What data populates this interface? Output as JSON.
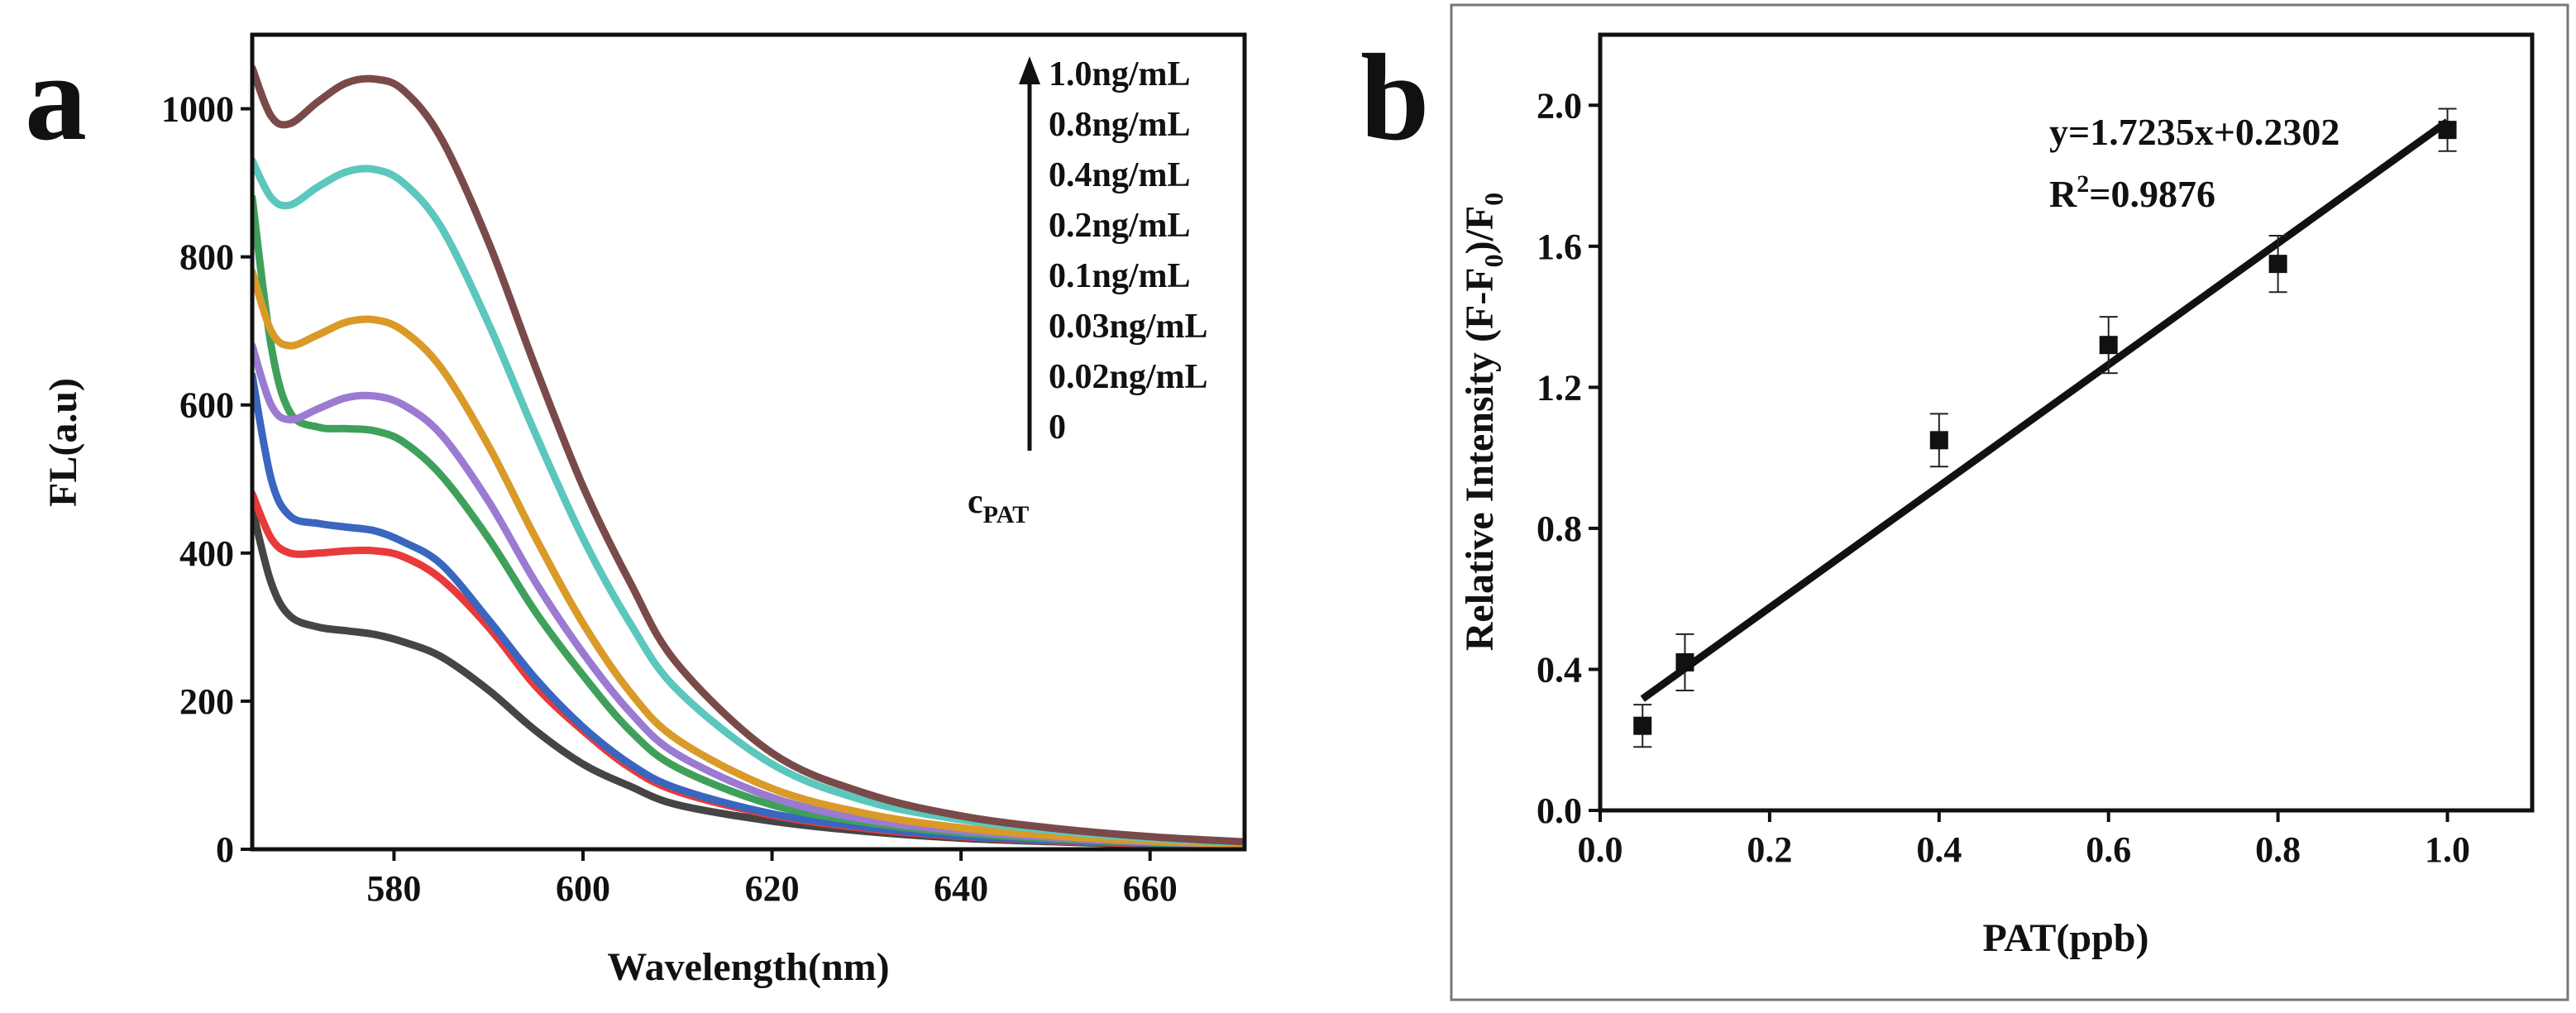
{
  "panel_a": {
    "letter": "a",
    "legend": {
      "items": [
        "1.0ng/mL",
        "0.8ng/mL",
        "0.4ng/mL",
        "0.2ng/mL",
        "0.1ng/mL",
        "0.03ng/mL",
        "0.02ng/mL",
        "0"
      ],
      "arrow_label": "c",
      "arrow_label_sub": "PAT"
    }
  },
  "panel_b": {
    "letter": "b",
    "equation": "y=1.7235x+0.2302",
    "r2_prefix": "R",
    "r2_sup": "2",
    "r2_value": "=0.9876"
  },
  "chart_data": [
    {
      "id": "a",
      "type": "line",
      "title": "",
      "xlabel": "Wavelength(nm)",
      "ylabel": "FL(a.u)",
      "xlim": [
        565,
        670
      ],
      "ylim": [
        0,
        1100
      ],
      "xticks": [
        580,
        600,
        620,
        640,
        660
      ],
      "yticks": [
        0,
        200,
        400,
        600,
        800,
        1000
      ],
      "series": [
        {
          "name": "0",
          "color": "#454545",
          "x": [
            565,
            567,
            569,
            572,
            575,
            578,
            581,
            585,
            590,
            595,
            600,
            605,
            610,
            620,
            630,
            640,
            650,
            660,
            670
          ],
          "y": [
            460,
            360,
            315,
            300,
            295,
            290,
            280,
            260,
            215,
            160,
            115,
            85,
            60,
            38,
            24,
            15,
            10,
            6,
            4
          ]
        },
        {
          "name": "0.02ng/mL",
          "color": "#e83a3a",
          "x": [
            565,
            567,
            569,
            572,
            575,
            578,
            581,
            585,
            590,
            595,
            600,
            605,
            610,
            620,
            630,
            640,
            650,
            660,
            670
          ],
          "y": [
            480,
            420,
            400,
            400,
            403,
            403,
            395,
            365,
            300,
            220,
            160,
            110,
            78,
            46,
            28,
            17,
            11,
            7,
            4
          ]
        },
        {
          "name": "0.03ng/mL",
          "color": "#3a66c0",
          "x": [
            565,
            567,
            569,
            572,
            575,
            578,
            581,
            585,
            590,
            595,
            600,
            605,
            610,
            620,
            630,
            640,
            650,
            660,
            670
          ],
          "y": [
            640,
            500,
            450,
            440,
            435,
            430,
            415,
            385,
            310,
            230,
            165,
            115,
            82,
            48,
            30,
            18,
            12,
            8,
            5
          ]
        },
        {
          "name": "0.1ng/mL",
          "color": "#3fa05a",
          "x": [
            565,
            567,
            569,
            572,
            575,
            578,
            581,
            585,
            590,
            595,
            600,
            605,
            610,
            620,
            630,
            640,
            650,
            660,
            670
          ],
          "y": [
            880,
            680,
            590,
            570,
            568,
            565,
            550,
            505,
            420,
            320,
            235,
            160,
            110,
            60,
            36,
            22,
            14,
            9,
            6
          ]
        },
        {
          "name": "0.2ng/mL",
          "color": "#9b7ad2",
          "x": [
            565,
            567,
            569,
            572,
            575,
            578,
            581,
            585,
            590,
            595,
            600,
            605,
            610,
            620,
            630,
            640,
            650,
            660,
            670
          ],
          "y": [
            680,
            600,
            580,
            595,
            610,
            612,
            600,
            560,
            470,
            360,
            265,
            185,
            128,
            70,
            40,
            25,
            16,
            10,
            6
          ]
        },
        {
          "name": "0.4ng/mL",
          "color": "#d99a28",
          "x": [
            565,
            567,
            569,
            572,
            575,
            578,
            581,
            585,
            590,
            595,
            600,
            605,
            610,
            620,
            630,
            640,
            650,
            660,
            670
          ],
          "y": [
            780,
            700,
            680,
            695,
            712,
            715,
            700,
            650,
            545,
            420,
            305,
            212,
            148,
            82,
            48,
            29,
            18,
            11,
            7
          ]
        },
        {
          "name": "0.8ng/mL",
          "color": "#5cc7bc",
          "x": [
            565,
            567,
            569,
            572,
            575,
            578,
            581,
            585,
            590,
            595,
            600,
            605,
            610,
            620,
            630,
            640,
            650,
            660,
            670
          ],
          "y": [
            930,
            880,
            870,
            895,
            915,
            918,
            900,
            840,
            710,
            560,
            420,
            305,
            215,
            115,
            65,
            40,
            25,
            15,
            9
          ]
        },
        {
          "name": "1.0ng/mL",
          "color": "#7a4a4a",
          "x": [
            565,
            567,
            569,
            572,
            575,
            578,
            581,
            585,
            590,
            595,
            600,
            605,
            610,
            620,
            630,
            640,
            650,
            660,
            670
          ],
          "y": [
            1055,
            990,
            980,
            1010,
            1035,
            1040,
            1025,
            960,
            820,
            650,
            490,
            360,
            250,
            130,
            75,
            45,
            28,
            17,
            10
          ]
        }
      ]
    },
    {
      "id": "b",
      "type": "scatter",
      "title": "",
      "xlabel": "PAT(ppb)",
      "ylabel": "Relative Intensity (F-F0)/F0",
      "xlim": [
        0.0,
        1.1
      ],
      "ylim": [
        0.0,
        2.2
      ],
      "xticks": [
        0.0,
        0.2,
        0.4,
        0.6,
        0.8,
        1.0
      ],
      "yticks": [
        0.0,
        0.4,
        0.8,
        1.2,
        1.6,
        2.0
      ],
      "points": [
        {
          "x": 0.05,
          "y": 0.24,
          "err": 0.06
        },
        {
          "x": 0.1,
          "y": 0.42,
          "err": 0.08
        },
        {
          "x": 0.4,
          "y": 1.05,
          "err": 0.075
        },
        {
          "x": 0.6,
          "y": 1.32,
          "err": 0.08
        },
        {
          "x": 0.8,
          "y": 1.55,
          "err": 0.08
        },
        {
          "x": 1.0,
          "y": 1.93,
          "err": 0.06
        }
      ],
      "fit": {
        "slope": 1.7235,
        "intercept": 0.2302,
        "x_range": [
          0.05,
          1.0
        ]
      }
    }
  ]
}
